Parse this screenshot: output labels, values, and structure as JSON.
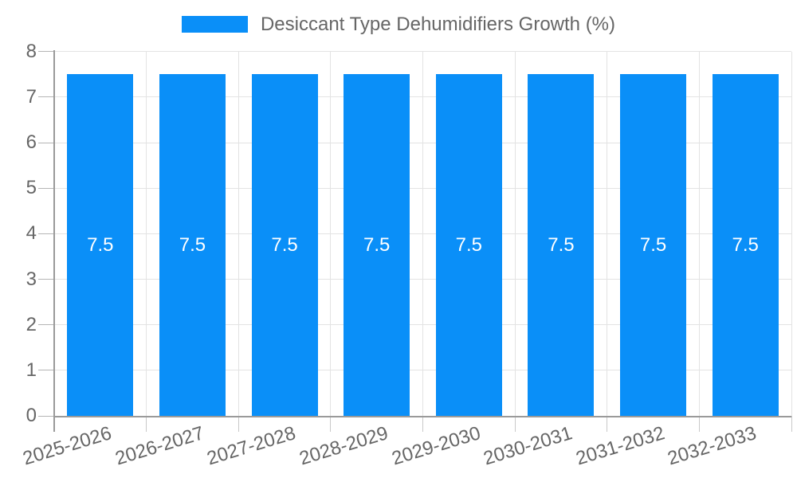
{
  "chart_data": {
    "type": "bar",
    "title": "Desiccant Type Dehumidifiers Growth (%)",
    "categories": [
      "2025-2026",
      "2026-2027",
      "2027-2028",
      "2028-2029",
      "2029-2030",
      "2030-2031",
      "2031-2032",
      "2032-2033"
    ],
    "series": [
      {
        "name": "Desiccant Type Dehumidifiers Growth (%)",
        "values": [
          7.5,
          7.5,
          7.5,
          7.5,
          7.5,
          7.5,
          7.5,
          7.5
        ]
      }
    ],
    "bar_value_labels": [
      "7.5",
      "7.5",
      "7.5",
      "7.5",
      "7.5",
      "7.5",
      "7.5",
      "7.5"
    ],
    "xlabel": "",
    "ylabel": "",
    "ylim": [
      0,
      8
    ],
    "yticks": [
      0,
      1,
      2,
      3,
      4,
      5,
      6,
      7,
      8
    ],
    "grid": true,
    "legend_position": "top-center",
    "colors": {
      "bar": "#0A8FF8",
      "axis_text": "#666666",
      "grid_line": "#e3e3e3",
      "axis_line": "#9a9a9a",
      "bar_label_text": "#ffffff",
      "background": "#ffffff"
    }
  }
}
